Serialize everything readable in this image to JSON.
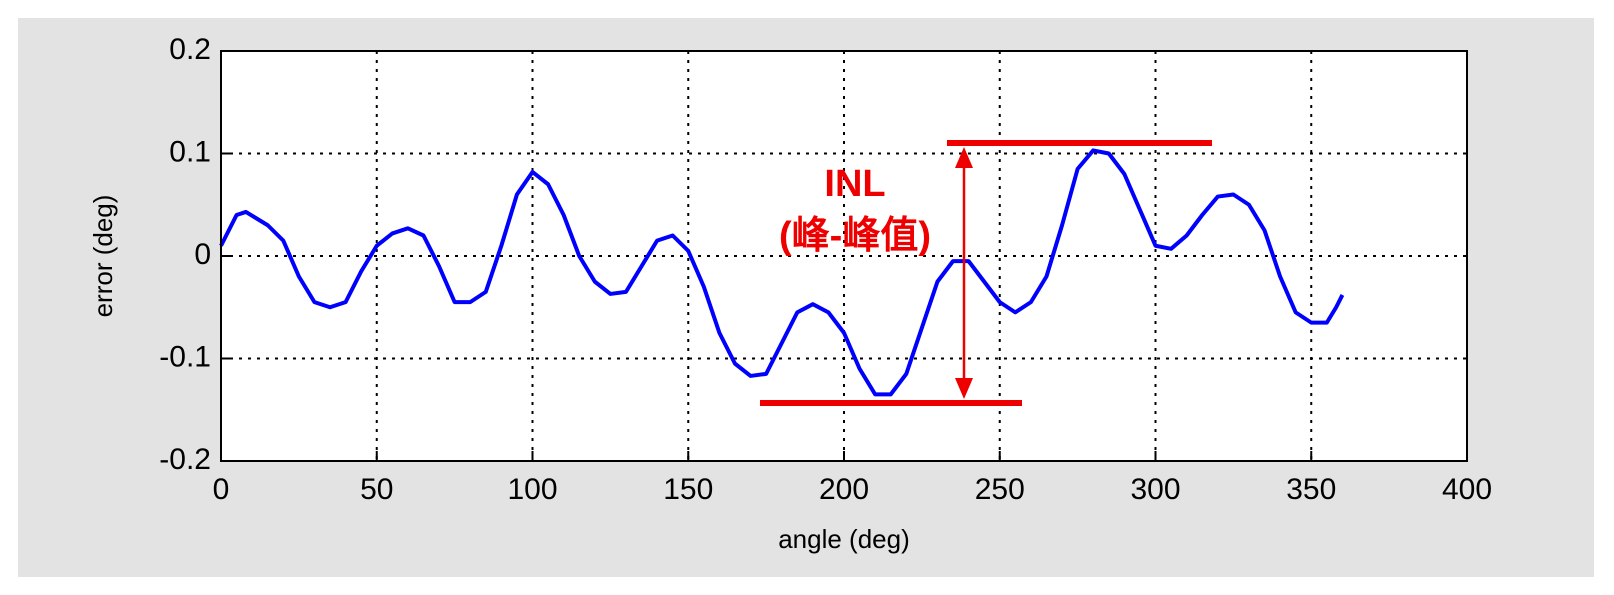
{
  "chart_data": {
    "type": "line",
    "x_label": "angle (deg)",
    "y_label": "error (deg)",
    "annotation": "INL",
    "annotation_sub": "(峰-峰值)",
    "xlim": [
      0,
      400
    ],
    "xticks": [
      0,
      50,
      100,
      150,
      200,
      250,
      300,
      350,
      400
    ],
    "ylim": [
      -0.2,
      0.2
    ],
    "yticks": [
      -0.2,
      -0.1,
      0,
      0.1,
      0.2
    ],
    "grid": true,
    "series": [
      {
        "color": "#0000ff",
        "x": [
          0,
          5,
          8,
          15,
          20,
          25,
          30,
          35,
          40,
          45,
          50,
          55,
          60,
          65,
          70,
          75,
          80,
          85,
          90,
          95,
          100,
          105,
          110,
          115,
          120,
          125,
          130,
          135,
          140,
          145,
          150,
          155,
          160,
          165,
          170,
          175,
          180,
          185,
          190,
          195,
          200,
          205,
          210,
          215,
          220,
          225,
          230,
          235,
          240,
          245,
          250,
          255,
          260,
          265,
          270,
          275,
          280,
          285,
          290,
          295,
          300,
          305,
          310,
          315,
          320,
          325,
          330,
          335,
          340,
          345,
          350,
          355,
          358,
          360
        ],
        "values": [
          0.01,
          0.04,
          0.043,
          0.03,
          0.015,
          -0.02,
          -0.045,
          -0.05,
          -0.045,
          -0.015,
          0.01,
          0.022,
          0.027,
          0.02,
          -0.01,
          -0.045,
          -0.045,
          -0.035,
          0.01,
          0.06,
          0.082,
          0.07,
          0.04,
          0,
          -0.025,
          -0.037,
          -0.035,
          -0.01,
          0.015,
          0.02,
          0.005,
          -0.03,
          -0.075,
          -0.105,
          -0.117,
          -0.115,
          -0.085,
          -0.055,
          -0.047,
          -0.055,
          -0.075,
          -0.11,
          -0.135,
          -0.135,
          -0.115,
          -0.07,
          -0.025,
          -0.005,
          -0.005,
          -0.025,
          -0.045,
          -0.055,
          -0.045,
          -0.02,
          0.03,
          0.085,
          0.103,
          0.1,
          0.08,
          0.045,
          0.01,
          0.007,
          0.02,
          0.04,
          0.058,
          0.06,
          0.05,
          0.025,
          -0.02,
          -0.055,
          -0.065,
          -0.065,
          -0.05,
          -0.038
        ]
      }
    ]
  }
}
